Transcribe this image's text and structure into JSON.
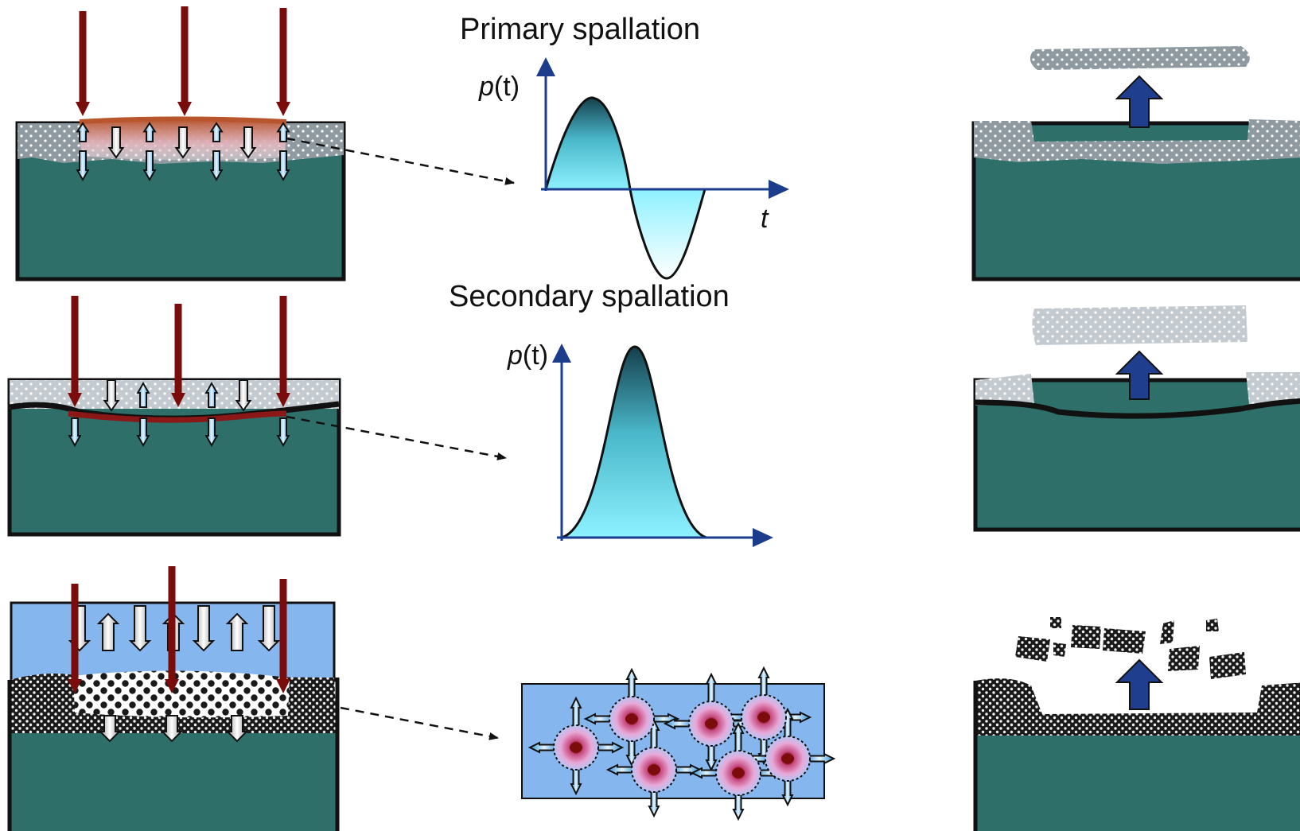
{
  "titles": {
    "primary": "Primary spallation",
    "secondary": "Secondary spallation"
  },
  "axes": {
    "primary_y_var": "p",
    "primary_y_arg": "(t)",
    "primary_x": "t",
    "secondary_y_var": "p",
    "secondary_y_arg": "(t)"
  },
  "colors": {
    "substrate": "#2e6f69",
    "outline": "#111111",
    "laser": "#7a0c0c",
    "axis": "#1c3c8c",
    "coating": "#8e9aa0",
    "water": "#86b6ee",
    "wave_dark": "#153f4c",
    "wave_light": "#8df1ff"
  }
}
